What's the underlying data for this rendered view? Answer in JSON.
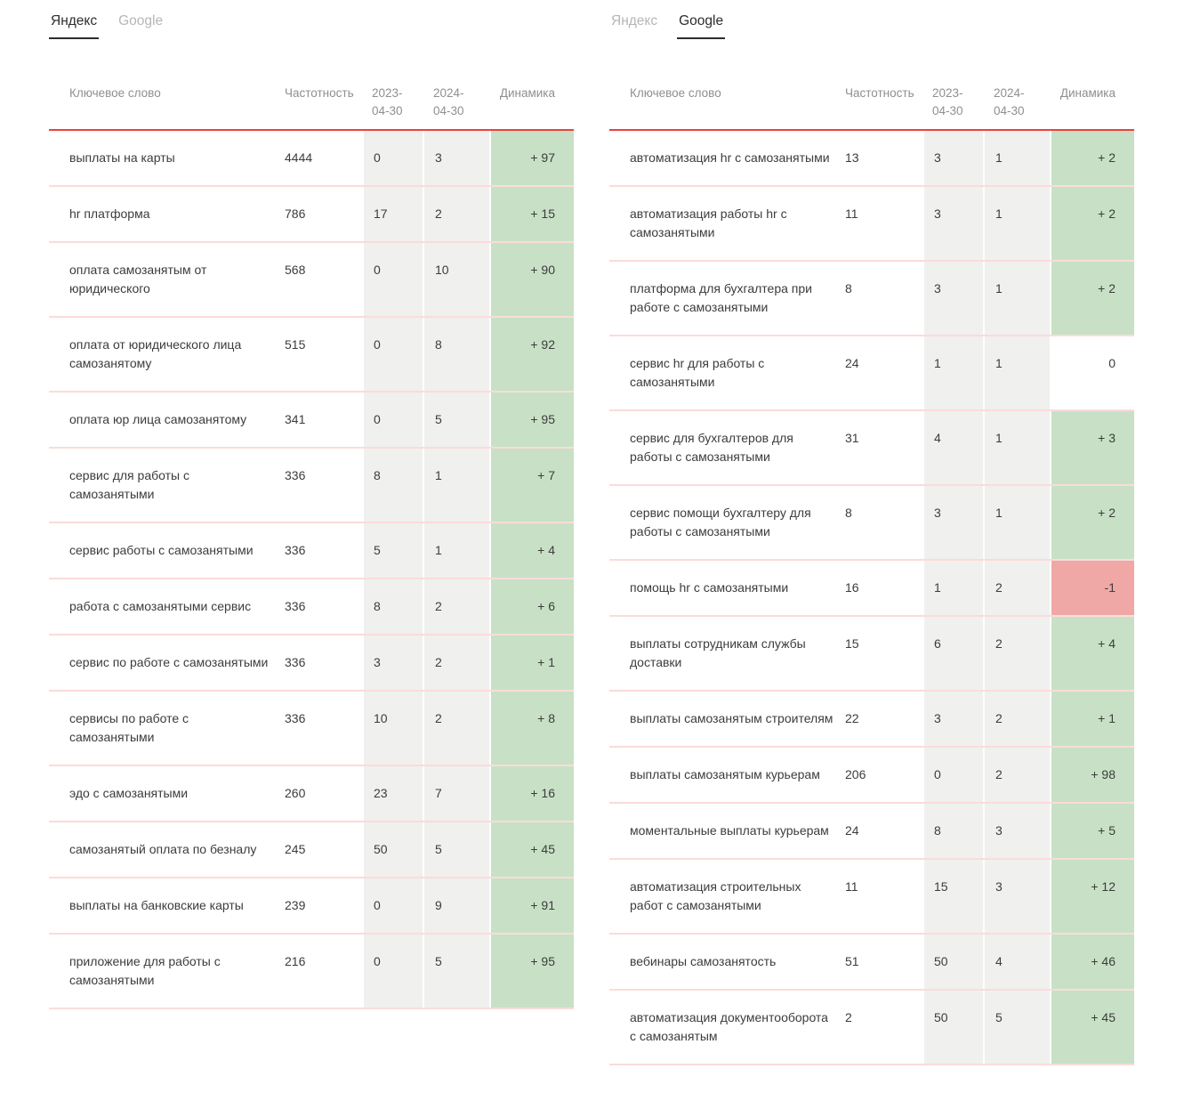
{
  "colors": {
    "accent_line": "#ed403d",
    "row_divider": "#fadcda",
    "date_col_bg": "#f0f0ee",
    "dynamics_up_bg": "#c8e1c6",
    "dynamics_down_bg": "#efa8a5"
  },
  "panels": [
    {
      "id": "yandex",
      "tabs": [
        {
          "id": "yandex",
          "label": "Яндекс",
          "active": true
        },
        {
          "id": "google",
          "label": "Google",
          "active": false
        }
      ],
      "headers": {
        "keyword": "Ключевое слово",
        "frequency": "Частотность",
        "date1": "2023-04-30",
        "date2": "2024-04-30",
        "dynamics": "Динамика"
      },
      "rows": [
        {
          "keyword": "выплаты на карты",
          "frequency": "4444",
          "date1": "0",
          "date2": "3",
          "dynamics": "+ 97",
          "trend": "up"
        },
        {
          "keyword": "hr платформа",
          "frequency": "786",
          "date1": "17",
          "date2": "2",
          "dynamics": "+ 15",
          "trend": "up"
        },
        {
          "keyword": "оплата самозанятым от юридического",
          "frequency": "568",
          "date1": "0",
          "date2": "10",
          "dynamics": "+ 90",
          "trend": "up"
        },
        {
          "keyword": "оплата от юридического лица самозанятому",
          "frequency": "515",
          "date1": "0",
          "date2": "8",
          "dynamics": "+ 92",
          "trend": "up"
        },
        {
          "keyword": "оплата юр лица самозанятому",
          "frequency": "341",
          "date1": "0",
          "date2": "5",
          "dynamics": "+ 95",
          "trend": "up"
        },
        {
          "keyword": "сервис для работы с самозанятыми",
          "frequency": "336",
          "date1": "8",
          "date2": "1",
          "dynamics": "+ 7",
          "trend": "up"
        },
        {
          "keyword": "сервис работы с самозанятыми",
          "frequency": "336",
          "date1": "5",
          "date2": "1",
          "dynamics": "+ 4",
          "trend": "up"
        },
        {
          "keyword": "работа с самозанятыми сервис",
          "frequency": "336",
          "date1": "8",
          "date2": "2",
          "dynamics": "+ 6",
          "trend": "up"
        },
        {
          "keyword": "сервис по работе с самозанятыми",
          "frequency": "336",
          "date1": "3",
          "date2": "2",
          "dynamics": "+ 1",
          "trend": "up"
        },
        {
          "keyword": "сервисы по работе с самозанятыми",
          "frequency": "336",
          "date1": "10",
          "date2": "2",
          "dynamics": "+ 8",
          "trend": "up"
        },
        {
          "keyword": "эдо с самозанятыми",
          "frequency": "260",
          "date1": "23",
          "date2": "7",
          "dynamics": "+ 16",
          "trend": "up"
        },
        {
          "keyword": "самозанятый оплата по безналу",
          "frequency": "245",
          "date1": "50",
          "date2": "5",
          "dynamics": "+ 45",
          "trend": "up"
        },
        {
          "keyword": "выплаты на банковские карты",
          "frequency": "239",
          "date1": "0",
          "date2": "9",
          "dynamics": "+ 91",
          "trend": "up"
        },
        {
          "keyword": "приложение для работы с самозанятыми",
          "frequency": "216",
          "date1": "0",
          "date2": "5",
          "dynamics": "+ 95",
          "trend": "up"
        }
      ]
    },
    {
      "id": "google",
      "tabs": [
        {
          "id": "yandex",
          "label": "Яндекс",
          "active": false
        },
        {
          "id": "google",
          "label": "Google",
          "active": true
        }
      ],
      "headers": {
        "keyword": "Ключевое слово",
        "frequency": "Частотность",
        "date1": "2023-04-30",
        "date2": "2024-04-30",
        "dynamics": "Динамика"
      },
      "rows": [
        {
          "keyword": "автоматизация hr с самозанятыми",
          "frequency": "13",
          "date1": "3",
          "date2": "1",
          "dynamics": "+ 2",
          "trend": "up"
        },
        {
          "keyword": "автоматизация работы hr с самозанятыми",
          "frequency": "11",
          "date1": "3",
          "date2": "1",
          "dynamics": "+ 2",
          "trend": "up"
        },
        {
          "keyword": "платформа для бухгалтера при работе с самозанятыми",
          "frequency": "8",
          "date1": "3",
          "date2": "1",
          "dynamics": "+ 2",
          "trend": "up"
        },
        {
          "keyword": "сервис hr для работы с самозанятыми",
          "frequency": "24",
          "date1": "1",
          "date2": "1",
          "dynamics": "0",
          "trend": "zero"
        },
        {
          "keyword": "сервис для бухгалтеров для работы с самозанятыми",
          "frequency": "31",
          "date1": "4",
          "date2": "1",
          "dynamics": "+ 3",
          "trend": "up"
        },
        {
          "keyword": "сервис помощи бухгалтеру для работы с самозанятыми",
          "frequency": "8",
          "date1": "3",
          "date2": "1",
          "dynamics": "+ 2",
          "trend": "up"
        },
        {
          "keyword": "помощь hr с самозанятыми",
          "frequency": "16",
          "date1": "1",
          "date2": "2",
          "dynamics": "-1",
          "trend": "down"
        },
        {
          "keyword": "выплаты сотрудникам службы доставки",
          "frequency": "15",
          "date1": "6",
          "date2": "2",
          "dynamics": "+ 4",
          "trend": "up"
        },
        {
          "keyword": "выплаты самозанятым строителям",
          "frequency": "22",
          "date1": "3",
          "date2": "2",
          "dynamics": "+ 1",
          "trend": "up"
        },
        {
          "keyword": "выплаты самозанятым курьерам",
          "frequency": "206",
          "date1": "0",
          "date2": "2",
          "dynamics": "+ 98",
          "trend": "up"
        },
        {
          "keyword": "моментальные выплаты курьерам",
          "frequency": "24",
          "date1": "8",
          "date2": "3",
          "dynamics": "+ 5",
          "trend": "up"
        },
        {
          "keyword": "автоматизация строительных работ с самозанятыми",
          "frequency": "11",
          "date1": "15",
          "date2": "3",
          "dynamics": "+ 12",
          "trend": "up"
        },
        {
          "keyword": "вебинары самозанятость",
          "frequency": "51",
          "date1": "50",
          "date2": "4",
          "dynamics": "+ 46",
          "trend": "up"
        },
        {
          "keyword": "автоматизация документооборота с самозанятым",
          "frequency": "2",
          "date1": "50",
          "date2": "5",
          "dynamics": "+ 45",
          "trend": "up"
        }
      ]
    }
  ]
}
